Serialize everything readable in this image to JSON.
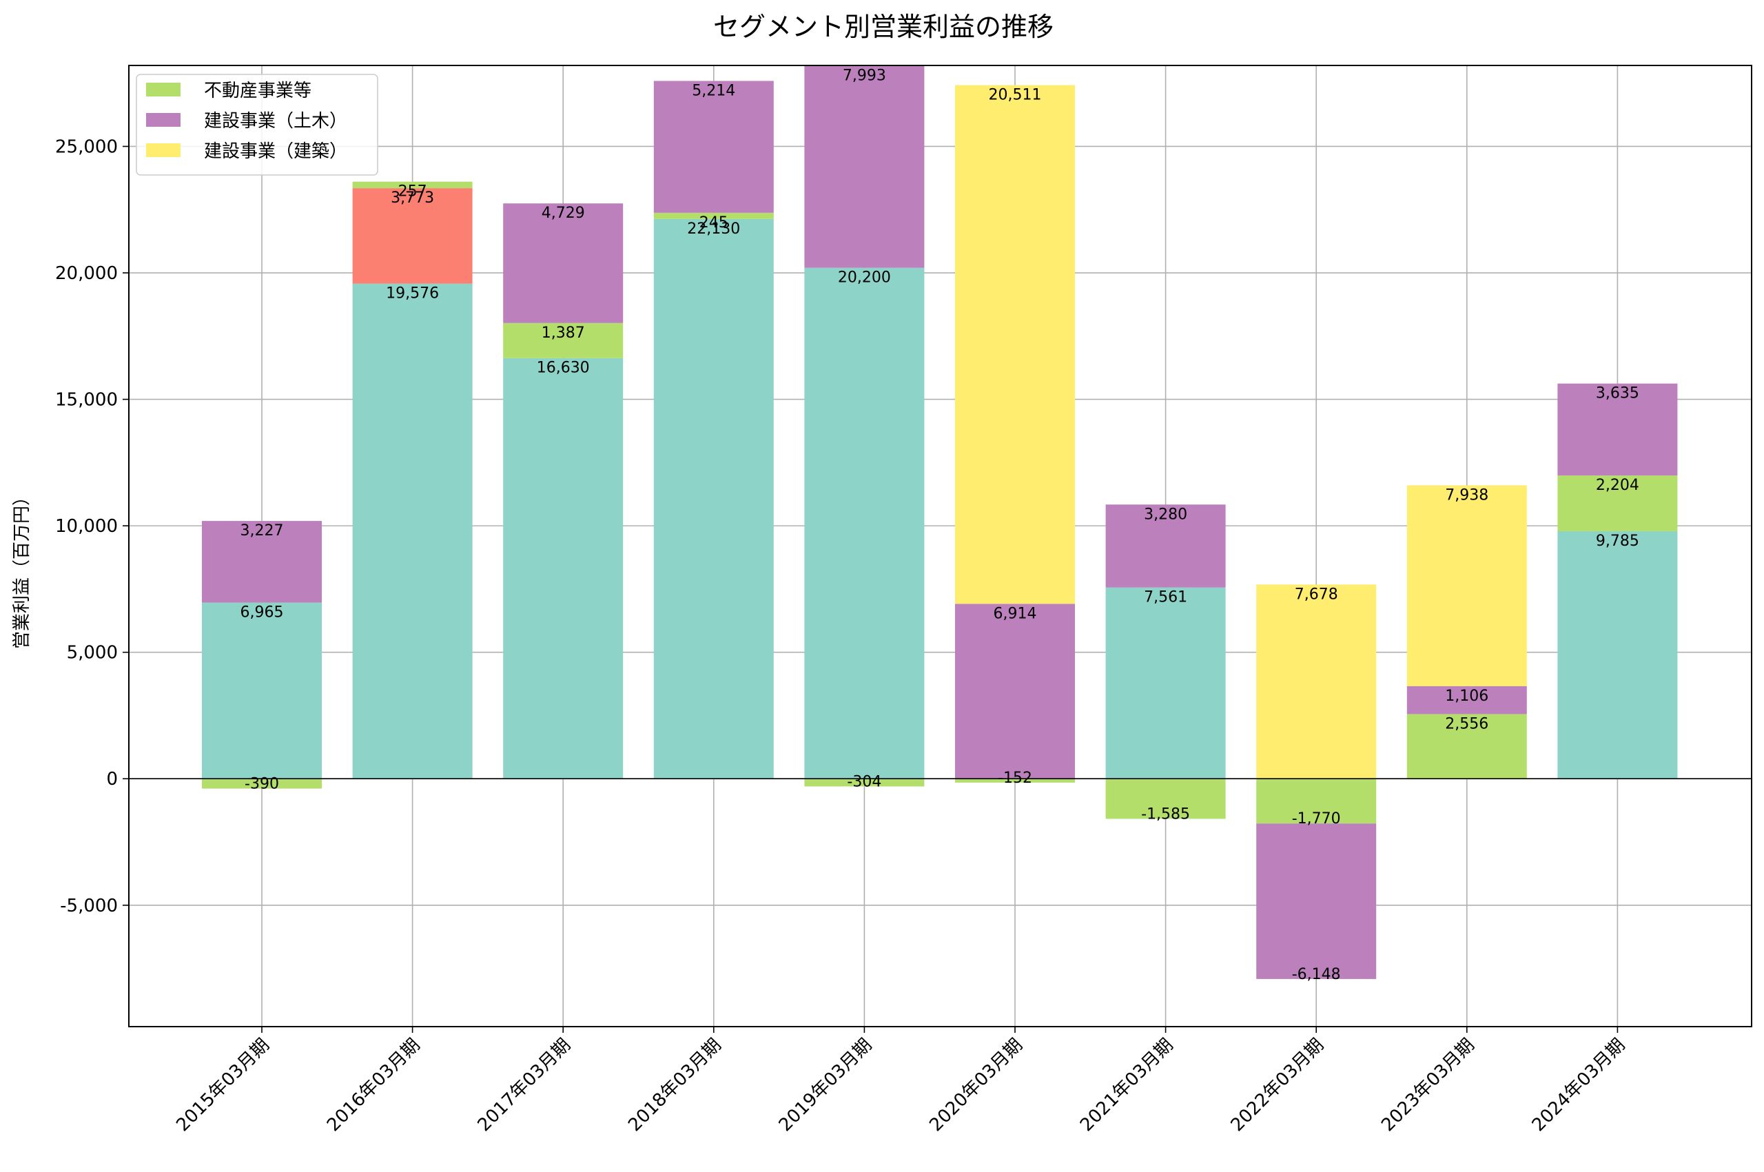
{
  "chart_data": {
    "type": "bar",
    "stacked": true,
    "title": "セグメント別営業利益の推移",
    "xlabel": "",
    "ylabel": "営業利益（百万円）",
    "ylim": [
      -9800,
      28200
    ],
    "yticks": [
      -5000,
      0,
      5000,
      10000,
      15000,
      20000,
      25000
    ],
    "ytick_labels": [
      "-5,000",
      "0",
      "5,000",
      "10,000",
      "15,000",
      "20,000",
      "25,000"
    ],
    "grid": true,
    "legend_position": "top-left",
    "categories": [
      "2015年03月期",
      "2016年03月期",
      "2017年03月期",
      "2018年03月期",
      "2019年03月期",
      "2020年03月期",
      "2021年03月期",
      "2022年03月期",
      "2023年03月期",
      "2024年03月期"
    ],
    "colors": {
      "teal": "#8dd3c7",
      "green": "#b3de69",
      "purple": "#bc80bd",
      "yellow": "#ffed6f",
      "salmon": "#fb8072"
    },
    "legend": [
      {
        "label": "不動産事業等",
        "color": "#b3de69"
      },
      {
        "label": "建設事業（土木）",
        "color": "#bc80bd"
      },
      {
        "label": "建設事業（建築）",
        "color": "#ffed6f"
      }
    ],
    "stacks": [
      [
        {
          "value": -390,
          "label": "-390",
          "color": "#b3de69"
        },
        {
          "value": 6965,
          "label": "6,965",
          "color": "#8dd3c7"
        },
        {
          "value": 3227,
          "label": "3,227",
          "color": "#bc80bd"
        }
      ],
      [
        {
          "value": 19576,
          "label": "19,576",
          "color": "#8dd3c7"
        },
        {
          "value": 3773,
          "label": "3,773",
          "color": "#fb8072"
        },
        {
          "value": 257,
          "label": "257",
          "color": "#b3de69"
        }
      ],
      [
        {
          "value": 16630,
          "label": "16,630",
          "color": "#8dd3c7"
        },
        {
          "value": 1387,
          "label": "1,387",
          "color": "#b3de69"
        },
        {
          "value": 4729,
          "label": "4,729",
          "color": "#bc80bd"
        }
      ],
      [
        {
          "value": 22130,
          "label": "22,130",
          "color": "#8dd3c7"
        },
        {
          "value": 245,
          "label": "245",
          "color": "#b3de69"
        },
        {
          "value": 5214,
          "label": "5,214",
          "color": "#bc80bd"
        }
      ],
      [
        {
          "value": -304,
          "label": "-304",
          "color": "#b3de69"
        },
        {
          "value": 20200,
          "label": "20,200",
          "color": "#8dd3c7"
        },
        {
          "value": 7993,
          "label": "7,993",
          "color": "#bc80bd"
        }
      ],
      [
        {
          "value": -152,
          "label": "-152",
          "color": "#b3de69"
        },
        {
          "value": 6914,
          "label": "6,914",
          "color": "#bc80bd"
        },
        {
          "value": 20511,
          "label": "20,511",
          "color": "#ffed6f"
        }
      ],
      [
        {
          "value": -1585,
          "label": "-1,585",
          "color": "#b3de69"
        },
        {
          "value": 7561,
          "label": "7,561",
          "color": "#8dd3c7"
        },
        {
          "value": 3280,
          "label": "3,280",
          "color": "#bc80bd"
        }
      ],
      [
        {
          "value": -1770,
          "label": "-1,770",
          "color": "#b3de69"
        },
        {
          "value": -6148,
          "label": "-6,148",
          "color": "#bc80bd"
        },
        {
          "value": 7678,
          "label": "7,678",
          "color": "#ffed6f"
        }
      ],
      [
        {
          "value": 2556,
          "label": "2,556",
          "color": "#b3de69"
        },
        {
          "value": 1106,
          "label": "1,106",
          "color": "#bc80bd"
        },
        {
          "value": 7938,
          "label": "7,938",
          "color": "#ffed6f"
        }
      ],
      [
        {
          "value": 9785,
          "label": "9,785",
          "color": "#8dd3c7"
        },
        {
          "value": 2204,
          "label": "2,204",
          "color": "#b3de69"
        },
        {
          "value": 3635,
          "label": "3,635",
          "color": "#bc80bd"
        }
      ]
    ]
  }
}
